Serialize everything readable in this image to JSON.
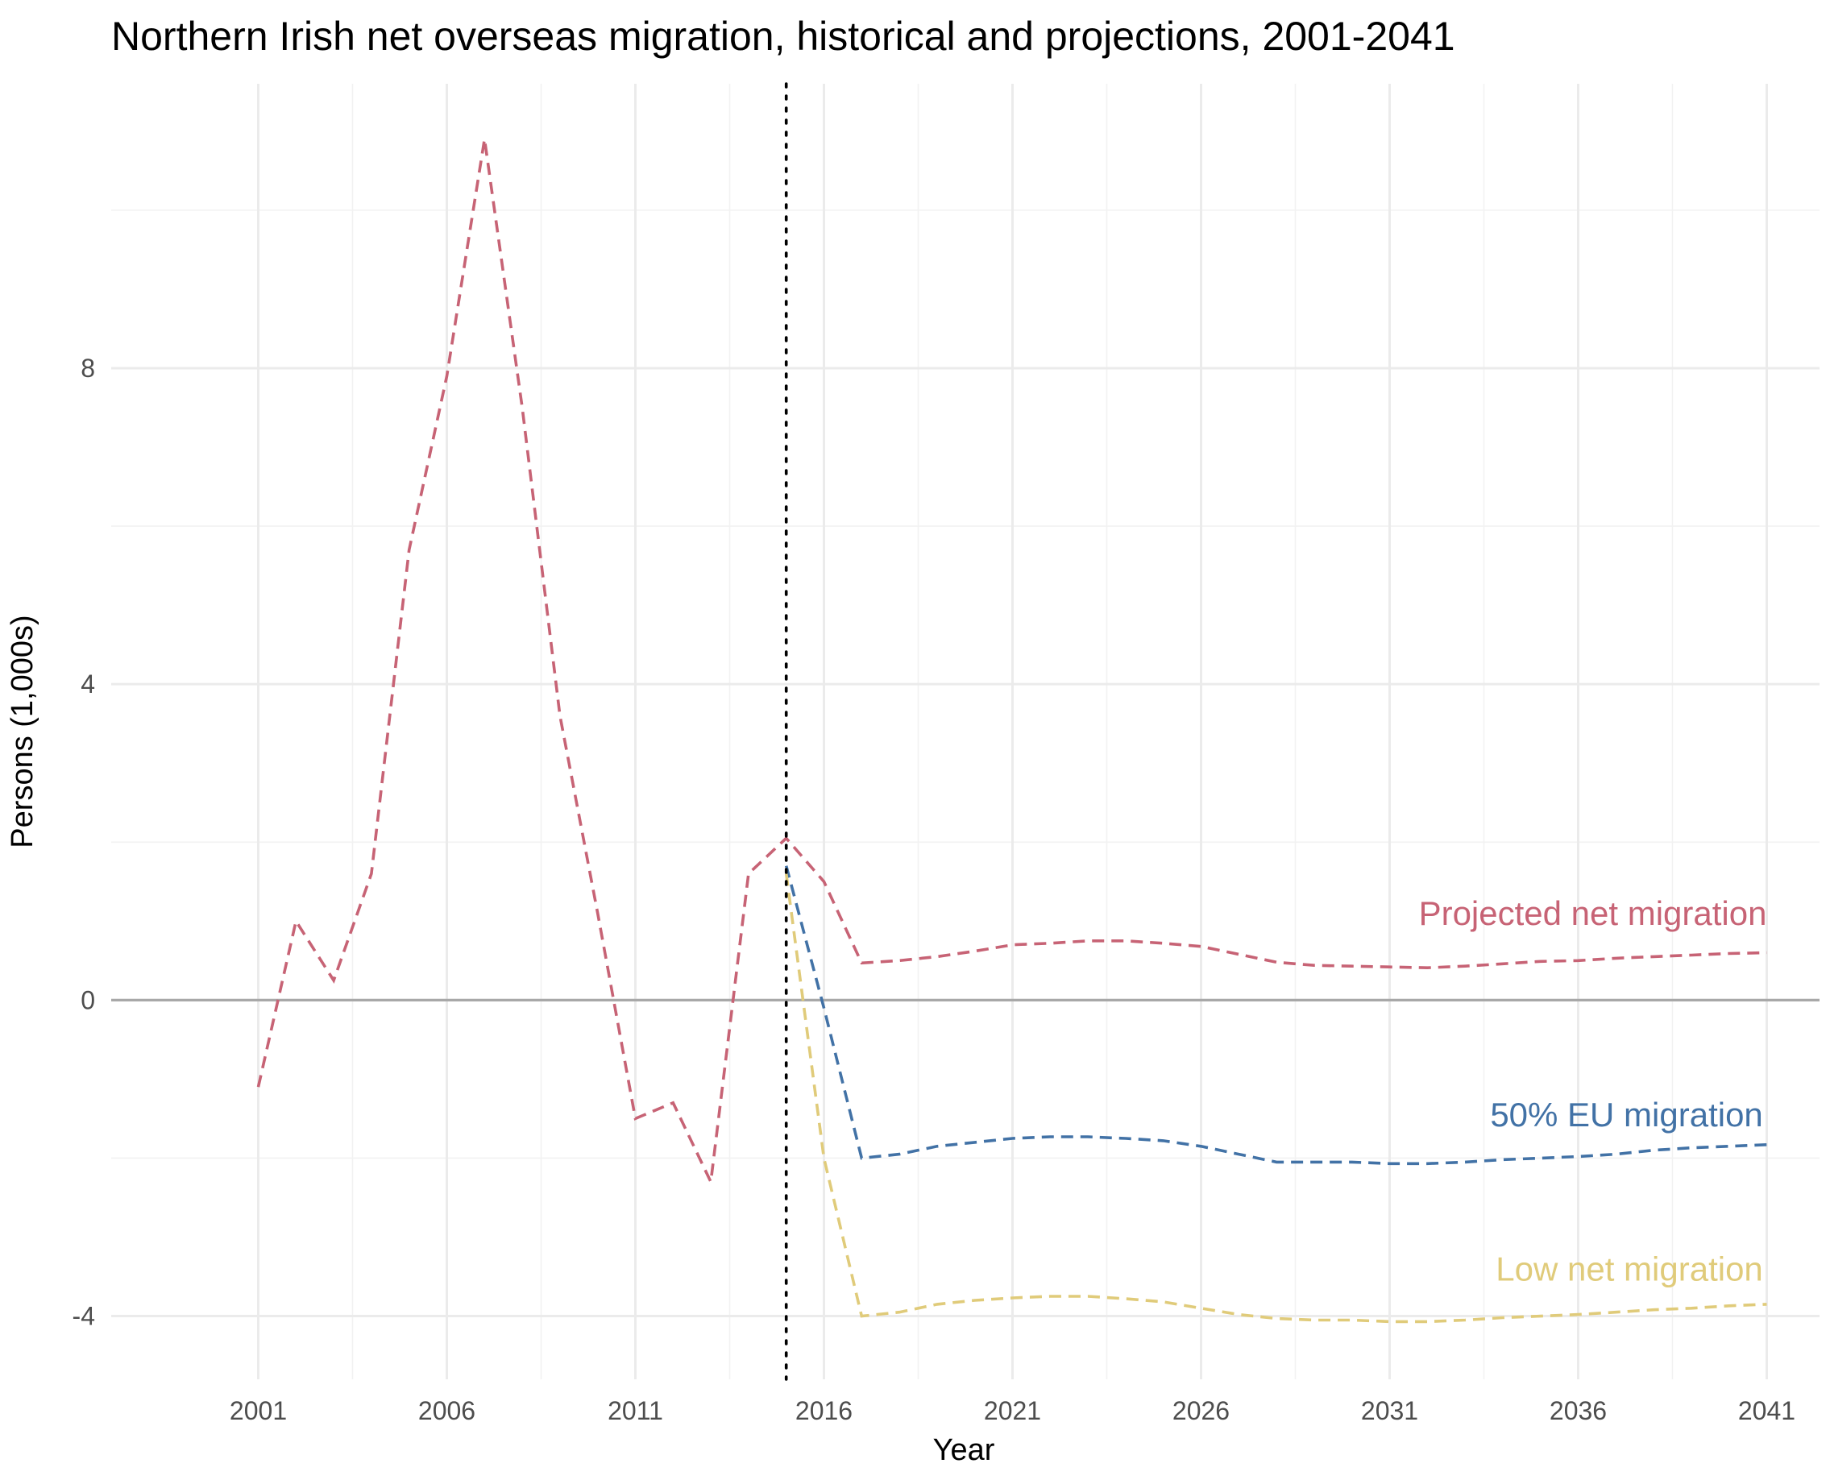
{
  "chart_data": {
    "type": "line",
    "title": "Northern Irish net overseas migration, historical and projections, 2001-2041",
    "xlabel": "Year",
    "ylabel": "Persons (1,000s)",
    "xlim": [
      1997.1,
      2042.4
    ],
    "ylim": [
      -4.8,
      11.6
    ],
    "x_ticks": [
      2001,
      2006,
      2011,
      2016,
      2021,
      2026,
      2031,
      2036,
      2041
    ],
    "y_ticks": [
      -4,
      0,
      4,
      8
    ],
    "y_tick_labels": [
      "-4",
      "0",
      "4",
      "8"
    ],
    "y_minor": [
      -2,
      2,
      6,
      10
    ],
    "grid": true,
    "legend": "none (series labelled directly on plot)",
    "reference_lines": {
      "horizontal_y": 0,
      "vertical_x": 2015
    },
    "series": [
      {
        "name": "Projected net migration",
        "color": "#c76375",
        "label_position": {
          "x": 2041,
          "y": 0.95
        },
        "points": [
          [
            2001,
            -1.1
          ],
          [
            2002,
            1.0
          ],
          [
            2003,
            0.25
          ],
          [
            2004,
            1.6
          ],
          [
            2005,
            5.7
          ],
          [
            2006,
            7.9
          ],
          [
            2007,
            10.9
          ],
          [
            2008,
            7.5
          ],
          [
            2009,
            3.6
          ],
          [
            2010,
            1.1
          ],
          [
            2011,
            -1.5
          ],
          [
            2012,
            -1.3
          ],
          [
            2013,
            -2.3
          ],
          [
            2014,
            1.6
          ],
          [
            2015,
            2.05
          ],
          [
            2016,
            1.5
          ],
          [
            2017,
            0.47
          ],
          [
            2018,
            0.5
          ],
          [
            2019,
            0.55
          ],
          [
            2020,
            0.62
          ],
          [
            2021,
            0.7
          ],
          [
            2022,
            0.72
          ],
          [
            2023,
            0.75
          ],
          [
            2024,
            0.75
          ],
          [
            2025,
            0.72
          ],
          [
            2026,
            0.68
          ],
          [
            2027,
            0.58
          ],
          [
            2028,
            0.48
          ],
          [
            2029,
            0.44
          ],
          [
            2030,
            0.43
          ],
          [
            2031,
            0.42
          ],
          [
            2032,
            0.41
          ],
          [
            2033,
            0.43
          ],
          [
            2034,
            0.46
          ],
          [
            2035,
            0.49
          ],
          [
            2036,
            0.5
          ],
          [
            2037,
            0.53
          ],
          [
            2038,
            0.55
          ],
          [
            2039,
            0.57
          ],
          [
            2040,
            0.59
          ],
          [
            2041,
            0.6
          ]
        ]
      },
      {
        "name": "50% EU migration",
        "color": "#4272a6",
        "label_position": {
          "x": 2040.9,
          "y": -1.6
        },
        "points": [
          [
            2015,
            1.7
          ],
          [
            2016,
            -0.1
          ],
          [
            2017,
            -2.0
          ],
          [
            2018,
            -1.95
          ],
          [
            2019,
            -1.85
          ],
          [
            2020,
            -1.8
          ],
          [
            2021,
            -1.75
          ],
          [
            2022,
            -1.73
          ],
          [
            2023,
            -1.73
          ],
          [
            2024,
            -1.75
          ],
          [
            2025,
            -1.78
          ],
          [
            2026,
            -1.85
          ],
          [
            2027,
            -1.95
          ],
          [
            2028,
            -2.05
          ],
          [
            2029,
            -2.05
          ],
          [
            2030,
            -2.05
          ],
          [
            2031,
            -2.07
          ],
          [
            2032,
            -2.07
          ],
          [
            2033,
            -2.05
          ],
          [
            2034,
            -2.02
          ],
          [
            2035,
            -2.0
          ],
          [
            2036,
            -1.98
          ],
          [
            2037,
            -1.95
          ],
          [
            2038,
            -1.9
          ],
          [
            2039,
            -1.87
          ],
          [
            2040,
            -1.85
          ],
          [
            2041,
            -1.83
          ]
        ]
      },
      {
        "name": "Low net migration",
        "color": "#e0cb7a",
        "label_position": {
          "x": 2040.9,
          "y": -3.55
        },
        "points": [
          [
            2015,
            1.6
          ],
          [
            2016,
            -2.0
          ],
          [
            2017,
            -4.0
          ],
          [
            2018,
            -3.95
          ],
          [
            2019,
            -3.85
          ],
          [
            2020,
            -3.8
          ],
          [
            2021,
            -3.77
          ],
          [
            2022,
            -3.75
          ],
          [
            2023,
            -3.75
          ],
          [
            2024,
            -3.78
          ],
          [
            2025,
            -3.82
          ],
          [
            2026,
            -3.9
          ],
          [
            2027,
            -3.98
          ],
          [
            2028,
            -4.03
          ],
          [
            2029,
            -4.05
          ],
          [
            2030,
            -4.05
          ],
          [
            2031,
            -4.07
          ],
          [
            2032,
            -4.07
          ],
          [
            2033,
            -4.05
          ],
          [
            2034,
            -4.02
          ],
          [
            2035,
            -4.0
          ],
          [
            2036,
            -3.98
          ],
          [
            2037,
            -3.95
          ],
          [
            2038,
            -3.92
          ],
          [
            2039,
            -3.9
          ],
          [
            2040,
            -3.87
          ],
          [
            2041,
            -3.85
          ]
        ]
      }
    ]
  }
}
